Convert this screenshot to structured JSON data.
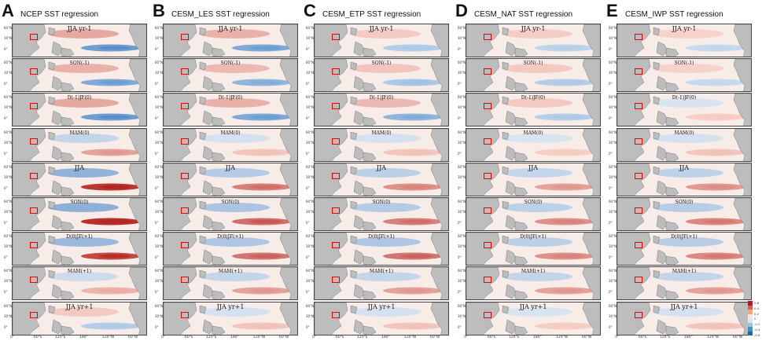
{
  "panels": [
    {
      "letter": "A",
      "title": "NCEP SST regression"
    },
    {
      "letter": "B",
      "title": "CESM_LES SST regression"
    },
    {
      "letter": "C",
      "title": "CESM_ETP SST regression"
    },
    {
      "letter": "D",
      "title": "CESM_NAT SST regression"
    },
    {
      "letter": "E",
      "title": "CESM_IWP SST regression"
    }
  ],
  "seasons": [
    "JJA yr-1",
    "SON(-1)",
    "D(-1)JF(0)",
    "MAM(0)",
    "JJA",
    "SON(0)",
    "D(0)JF(+1)",
    "MAM(+1)",
    "JJA yr+1"
  ],
  "lat_labels": [
    "60°N",
    "30°N",
    "0°"
  ],
  "lon_labels": [
    "0°",
    "60°E",
    "120°E",
    "180°",
    "120°W",
    "60°W"
  ],
  "colorbar": {
    "ticks": [
      "0.6",
      "0.4",
      "0.2",
      "0",
      "-0.2",
      "-0.4",
      "-0.6"
    ],
    "colors": [
      "#b2182b",
      "#d6604d",
      "#f4a582",
      "#fbe3d6",
      "#d6e6f4",
      "#92c5de",
      "#4393c3",
      "#2166ac"
    ]
  },
  "anomaly": {
    "A": [
      -0.6,
      -0.5,
      -0.6,
      0.3,
      0.9,
      0.95,
      0.8,
      0.2,
      -0.2
    ],
    "B": [
      -0.5,
      -0.4,
      -0.5,
      0.1,
      0.5,
      0.6,
      0.55,
      0.3,
      0.1
    ],
    "C": [
      -0.2,
      -0.25,
      -0.4,
      0.1,
      0.4,
      0.5,
      0.55,
      0.3,
      0.1
    ],
    "D": [
      -0.15,
      -0.2,
      -0.2,
      0.05,
      0.3,
      0.4,
      0.4,
      0.3,
      0.05
    ],
    "E": [
      -0.1,
      -0.1,
      0.05,
      0.1,
      0.35,
      0.45,
      0.45,
      0.3,
      0.1
    ]
  }
}
